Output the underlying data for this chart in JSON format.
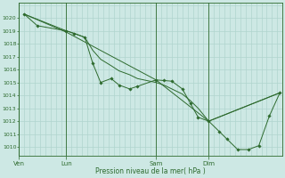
{
  "background_color": "#cde8e4",
  "grid_color": "#b0d4ce",
  "line_color": "#2d6a2d",
  "marker_color": "#2d6a2d",
  "xlabel": "Pression niveau de la mer( hPa )",
  "ylim": [
    1009.3,
    1021.2
  ],
  "yticks": [
    1010,
    1011,
    1012,
    1013,
    1014,
    1015,
    1016,
    1017,
    1018,
    1019,
    1020
  ],
  "day_labels": [
    "Ven",
    "Lun",
    "Sam",
    "Dim"
  ],
  "day_positions": [
    0.0,
    0.18,
    0.52,
    0.72
  ],
  "xlim": [
    0.0,
    1.0
  ],
  "series_detailed": [
    [
      0.02,
      1020.3
    ],
    [
      0.07,
      1019.4
    ],
    [
      0.18,
      1019.0
    ],
    [
      0.21,
      1018.8
    ],
    [
      0.25,
      1018.5
    ],
    [
      0.28,
      1016.5
    ],
    [
      0.31,
      1015.0
    ],
    [
      0.35,
      1015.3
    ],
    [
      0.38,
      1014.8
    ],
    [
      0.42,
      1014.5
    ],
    [
      0.45,
      1014.7
    ],
    [
      0.52,
      1015.2
    ],
    [
      0.55,
      1015.15
    ],
    [
      0.58,
      1015.1
    ],
    [
      0.62,
      1014.5
    ],
    [
      0.65,
      1013.4
    ],
    [
      0.68,
      1012.3
    ],
    [
      0.72,
      1012.0
    ],
    [
      0.76,
      1011.2
    ],
    [
      0.79,
      1010.6
    ],
    [
      0.83,
      1009.8
    ],
    [
      0.87,
      1009.8
    ],
    [
      0.91,
      1010.1
    ],
    [
      0.95,
      1012.4
    ],
    [
      0.99,
      1014.2
    ]
  ],
  "series_smooth": [
    [
      0.02,
      1020.3
    ],
    [
      0.18,
      1019.0
    ],
    [
      0.21,
      1018.8
    ],
    [
      0.25,
      1018.5
    ],
    [
      0.28,
      1017.5
    ],
    [
      0.31,
      1016.8
    ],
    [
      0.35,
      1016.3
    ],
    [
      0.38,
      1015.9
    ],
    [
      0.42,
      1015.6
    ],
    [
      0.45,
      1015.3
    ],
    [
      0.52,
      1015.0
    ],
    [
      0.55,
      1014.8
    ],
    [
      0.58,
      1014.5
    ],
    [
      0.62,
      1014.1
    ],
    [
      0.65,
      1013.6
    ],
    [
      0.68,
      1013.0
    ],
    [
      0.72,
      1012.0
    ],
    [
      0.99,
      1014.2
    ]
  ],
  "series_diagonal": [
    [
      0.02,
      1020.3
    ],
    [
      0.18,
      1018.9
    ],
    [
      0.52,
      1015.2
    ],
    [
      0.72,
      1012.0
    ],
    [
      0.99,
      1014.2
    ]
  ]
}
